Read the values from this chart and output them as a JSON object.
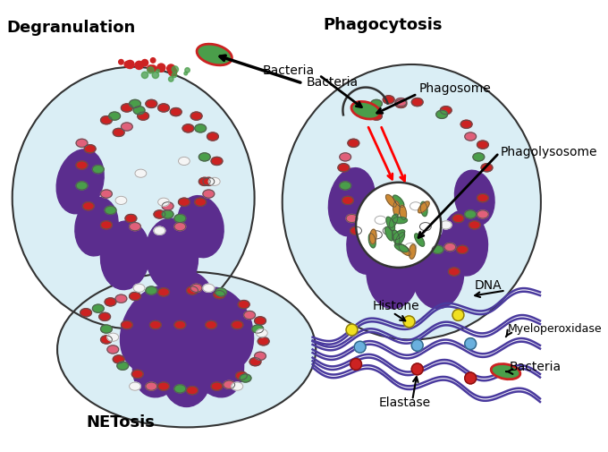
{
  "bg_cell": "#daeef5",
  "cell_outline": "#333333",
  "nucleus_color": "#5b2d8e",
  "red_granule": "#cc2222",
  "green_granule": "#4a9e4a",
  "pink_granule": "#e0607a",
  "white_granule": "#f5f5f5",
  "label_degranulation": "Degranulation",
  "label_phagocytosis": "Phagocytosis",
  "label_netosis": "NETosis",
  "label_bacteria": "Bacteria",
  "label_phagosome": "Phagosome",
  "label_phagolysosome": "Phagolysosome",
  "label_dna": "DNA",
  "label_histone": "Histone",
  "label_myeloperoxidase": "Myeloperoxidase",
  "label_elastase": "Elastase",
  "dna_color": "#4a3a9e",
  "histone_color": "#f0e020",
  "myeloperoxidase_color": "#6ab0de",
  "elastase_color": "#cc2222"
}
